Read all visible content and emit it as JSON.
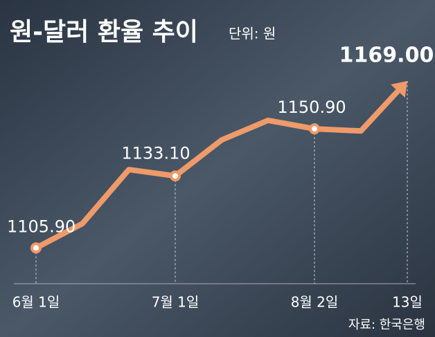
{
  "chart_data": {
    "type": "line",
    "title": "원-달러 환율 추이",
    "subtitle": "단위: 원",
    "source": "자료: 한국은행",
    "categories": [
      "6월 1일",
      null,
      null,
      "7월 1일",
      null,
      null,
      "8월 2일",
      null,
      "13일"
    ],
    "values": [
      1105.9,
      1115.1,
      1135.5,
      1133.1,
      1146.7,
      1154.1,
      1150.9,
      1150.1,
      1169.0
    ],
    "value_labels": [
      "1105.90",
      null,
      null,
      "1133.10",
      null,
      null,
      "1150.90",
      null,
      "1169.00"
    ],
    "color": "#ef9a6a",
    "ylim": [
      1095,
      1175
    ]
  }
}
